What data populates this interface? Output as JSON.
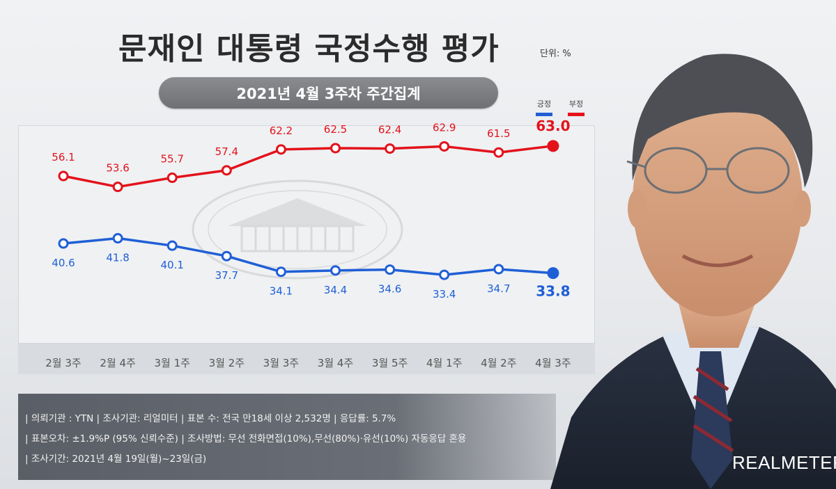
{
  "header": {
    "title": "문재인 대통령 국정수행 평가",
    "unit": "단위: %",
    "subtitle": "2021년 4월 3주차 주간집계"
  },
  "legend": {
    "positive": "긍정",
    "negative": "부정"
  },
  "colors": {
    "positive": "#1f5fd6",
    "negative": "#e3121b"
  },
  "chart_data": {
    "type": "line",
    "categories": [
      "2월 3주",
      "2월 4주",
      "3월 1주",
      "3월 2주",
      "3월 3주",
      "3월 4주",
      "3월 5주",
      "4월 1주",
      "4월 2주",
      "4월 3주"
    ],
    "series": [
      {
        "name": "긍정",
        "values": [
          40.6,
          41.8,
          40.1,
          37.7,
          34.1,
          34.4,
          34.6,
          33.4,
          34.7,
          33.8
        ]
      },
      {
        "name": "부정",
        "values": [
          56.1,
          53.6,
          55.7,
          57.4,
          62.2,
          62.5,
          62.4,
          62.9,
          61.5,
          63.0
        ]
      }
    ],
    "value_labels": {
      "긍정": [
        "40.6",
        "41.8",
        "40.1",
        "37.7",
        "34.1",
        "34.4",
        "34.6",
        "33.4",
        "34.7",
        "33.8"
      ],
      "부정": [
        "56.1",
        "53.6",
        "55.7",
        "57.4",
        "62.2",
        "62.5",
        "62.4",
        "62.9",
        "61.5",
        "63.0"
      ]
    },
    "title": "문재인 대통령 국정수행 평가",
    "xlabel": "",
    "ylabel": "",
    "ylim": [
      30,
      66
    ],
    "grid": false,
    "legend_position": "top-right"
  },
  "footer": {
    "line1": "| 의뢰기관 : YTN   |   조사기관: 리얼미터 |   표본 수: 전국 만18세 이상 2,532명   |   응답률: 5.7%",
    "line2": "| 표본오차: ±1.9%P (95% 신뢰수준)   |   조사방법: 무선 전화면접(10%),무선(80%)·유선(10%) 자동응답 혼용",
    "line3": "| 조사기간: 2021년 4월 19일(월)~23일(금)"
  },
  "brand": "REALMETER"
}
